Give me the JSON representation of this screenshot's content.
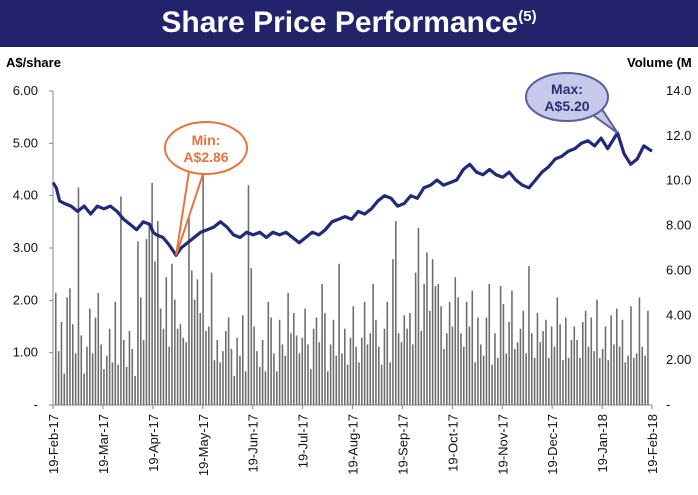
{
  "banner": {
    "title": "Share Price Performance",
    "footnote": "(5)"
  },
  "colors": {
    "banner": "#22236b",
    "price_line": "#1f2a7a",
    "volume_bars": "#6d6d6d",
    "min_callout": "#e8743b",
    "max_callout": "#5a5f9c"
  },
  "chart_data": {
    "type": "line+bar",
    "ylabel_left": "A$/share",
    "ylabel_right": "Volume (M",
    "y_left_range": [
      0,
      6
    ],
    "y_left_ticks": [
      "-",
      "1.00",
      "2.00",
      "3.00",
      "4.00",
      "5.00",
      "6.00"
    ],
    "y_right_range": [
      0,
      14
    ],
    "y_right_ticks": [
      "-",
      "2.00",
      "4.00",
      "6.00",
      "8.00",
      "10.0",
      "12.0",
      "14.0"
    ],
    "x_range": [
      "2017-02-19",
      "2018-02-19"
    ],
    "x_tick_labels": [
      "19-Feb-17",
      "19-Mar-17",
      "19-Apr-17",
      "19-May-17",
      "19-Jun-17",
      "19-Jul-17",
      "19-Aug-17",
      "19-Sep-17",
      "19-Oct-17",
      "19-Nov-17",
      "19-Dec-17",
      "19-Jan-18",
      "19-Feb-18"
    ],
    "annotations": [
      {
        "label": "Min:",
        "value": "A$2.86",
        "date": "2017-05-05",
        "price": 2.86
      },
      {
        "label": "Max:",
        "value": "A$5.20",
        "date": "2018-01-29",
        "price": 5.2
      }
    ],
    "series": [
      {
        "type": "line",
        "axis": "left",
        "x": [
          "2017-02-19",
          "2017-02-21",
          "2017-02-23",
          "2017-02-26",
          "2017-03-02",
          "2017-03-06",
          "2017-03-10",
          "2017-03-14",
          "2017-03-18",
          "2017-03-22",
          "2017-03-26",
          "2017-03-30",
          "2017-04-03",
          "2017-04-07",
          "2017-04-11",
          "2017-04-15",
          "2017-04-19",
          "2017-04-21",
          "2017-04-23",
          "2017-04-27",
          "2017-05-01",
          "2017-05-05",
          "2017-05-08",
          "2017-05-12",
          "2017-05-16",
          "2017-05-20",
          "2017-05-24",
          "2017-05-28",
          "2017-06-01",
          "2017-06-05",
          "2017-06-09",
          "2017-06-13",
          "2017-06-17",
          "2017-06-21",
          "2017-06-25",
          "2017-06-29",
          "2017-07-03",
          "2017-07-07",
          "2017-07-11",
          "2017-07-15",
          "2017-07-19",
          "2017-07-23",
          "2017-07-27",
          "2017-07-31",
          "2017-08-04",
          "2017-08-08",
          "2017-08-12",
          "2017-08-16",
          "2017-08-20",
          "2017-08-24",
          "2017-08-28",
          "2017-09-01",
          "2017-09-05",
          "2017-09-09",
          "2017-09-13",
          "2017-09-17",
          "2017-09-21",
          "2017-09-25",
          "2017-09-29",
          "2017-10-03",
          "2017-10-07",
          "2017-10-11",
          "2017-10-15",
          "2017-10-19",
          "2017-10-23",
          "2017-10-27",
          "2017-10-31",
          "2017-11-04",
          "2017-11-08",
          "2017-11-12",
          "2017-11-16",
          "2017-11-20",
          "2017-11-24",
          "2017-11-28",
          "2017-12-02",
          "2017-12-06",
          "2017-12-10",
          "2017-12-14",
          "2017-12-18",
          "2017-12-22",
          "2017-12-26",
          "2017-12-30",
          "2018-01-03",
          "2018-01-07",
          "2018-01-11",
          "2018-01-15",
          "2018-01-19",
          "2018-01-23",
          "2018-01-29",
          "2018-02-02",
          "2018-02-06",
          "2018-02-10",
          "2018-02-14",
          "2018-02-19"
        ],
        "values": [
          4.25,
          4.15,
          3.9,
          3.85,
          3.8,
          3.7,
          3.8,
          3.65,
          3.8,
          3.75,
          3.8,
          3.7,
          3.55,
          3.45,
          3.35,
          3.5,
          3.45,
          3.3,
          3.25,
          3.2,
          3.05,
          2.86,
          3.0,
          3.1,
          3.2,
          3.3,
          3.35,
          3.4,
          3.5,
          3.4,
          3.25,
          3.2,
          3.3,
          3.25,
          3.3,
          3.2,
          3.3,
          3.25,
          3.3,
          3.2,
          3.1,
          3.2,
          3.3,
          3.25,
          3.35,
          3.5,
          3.55,
          3.6,
          3.55,
          3.7,
          3.65,
          3.75,
          3.9,
          4.0,
          3.95,
          3.8,
          3.85,
          4.0,
          3.95,
          4.15,
          4.2,
          4.3,
          4.2,
          4.25,
          4.3,
          4.5,
          4.6,
          4.45,
          4.4,
          4.5,
          4.4,
          4.35,
          4.45,
          4.3,
          4.2,
          4.15,
          4.3,
          4.45,
          4.55,
          4.7,
          4.75,
          4.85,
          4.9,
          5.0,
          5.05,
          4.95,
          5.1,
          4.9,
          5.2,
          4.8,
          4.6,
          4.7,
          4.95,
          4.85
        ]
      },
      {
        "type": "bar",
        "axis": "right",
        "name": "Volume",
        "values": [
          5.0,
          2.4,
          3.7,
          1.4,
          4.8,
          5.2,
          3.6,
          2.3,
          9.7,
          3.1,
          1.4,
          2.6,
          4.3,
          2.3,
          3.9,
          5.0,
          2.7,
          1.6,
          2.2,
          3.4,
          1.9,
          4.6,
          1.8,
          9.3,
          2.9,
          1.7,
          3.3,
          2.5,
          1.3,
          7.3,
          4.8,
          2.9,
          7.4,
          8.0,
          9.9,
          6.4,
          8.2,
          4.3,
          3.4,
          5.7,
          2.6,
          6.3,
          4.7,
          3.4,
          3.6,
          3.0,
          2.8,
          10.5,
          6.0,
          4.7,
          5.6,
          4.1,
          10.3,
          3.3,
          3.5,
          5.9,
          2.0,
          2.9,
          1.9,
          2.4,
          3.3,
          3.9,
          2.5,
          1.3,
          3.0,
          2.2,
          4.0,
          1.5,
          9.8,
          6.1,
          3.5,
          2.4,
          1.7,
          2.9,
          1.5,
          4.6,
          3.9,
          2.3,
          1.5,
          3.8,
          2.7,
          2.2,
          5.0,
          3.2,
          4.1,
          3.1,
          2.3,
          3.0,
          4.3,
          2.7,
          1.6,
          3.4,
          3.9,
          2.8,
          5.4,
          4.1,
          1.5,
          2.7,
          3.8,
          2.2,
          6.3,
          2.3,
          3.4,
          1.8,
          3.0,
          4.4,
          2.6,
          1.9,
          3.0,
          4.6,
          2.7,
          3.2,
          5.4,
          3.8,
          2.6,
          1.8,
          3.4,
          4.6,
          1.9,
          6.5,
          8.2,
          3.2,
          2.8,
          4.0,
          3.4,
          4.1,
          2.7,
          5.9,
          7.9,
          3.3,
          5.4,
          6.8,
          4.2,
          6.5,
          5.3,
          5.4,
          4.4,
          2.5,
          3.2,
          4.6,
          3.5,
          5.7,
          4.8,
          3.2,
          2.6,
          4.6,
          3.5,
          5.1,
          1.9,
          3.9,
          2.7,
          2.2,
          3.9,
          5.4,
          1.8,
          3.2,
          2.1,
          5.3,
          4.5,
          2.3,
          3.7,
          5.1,
          2.5,
          2.8,
          3.4,
          4.2,
          2.3,
          6.2,
          3.2,
          2.1,
          4.1,
          2.8,
          3.3,
          3.8,
          2.1,
          3.5,
          2.6,
          4.8,
          3.6,
          2.0,
          3.9,
          2.1,
          2.9,
          3.5,
          2.9,
          2.1,
          3.7,
          4.2,
          2.6,
          3.9,
          2.4,
          4.7,
          2.1,
          2.5,
          3.5,
          2.0,
          4.0,
          2.7,
          4.3,
          2.6,
          3.8,
          1.9,
          2.2,
          4.4,
          2.1,
          2.3,
          4.8,
          2.6,
          2.2,
          4.2
        ]
      }
    ]
  }
}
